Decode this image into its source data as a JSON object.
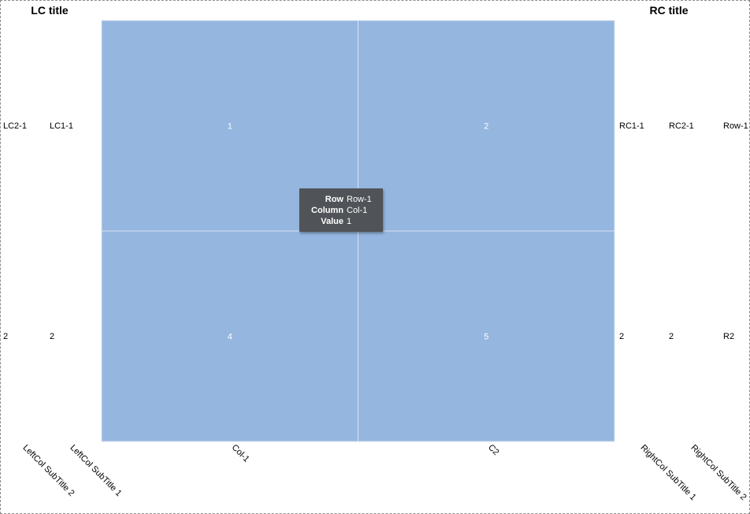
{
  "chart_data": {
    "type": "heatmap",
    "title": "",
    "columns": [
      "Col-1",
      "C2"
    ],
    "rows": [
      "Row-1",
      "R2"
    ],
    "values": [
      [
        1,
        2
      ],
      [
        4,
        5
      ]
    ],
    "color": "#95b6df",
    "left_columns": {
      "title": "LC title",
      "subtitles": [
        "LeftCol SubTitle 2",
        "LeftCol SubTitle 1"
      ],
      "columns": [
        [
          "LC2-1",
          "2"
        ],
        [
          "LC1-1",
          "2"
        ]
      ]
    },
    "right_columns": {
      "title": "RC title",
      "subtitles": [
        "RightCol SubTitle 1",
        "RightCol SubTitle 2"
      ],
      "columns": [
        [
          "RC1-1",
          "2"
        ],
        [
          "RC2-1",
          "2"
        ],
        [
          "Row-1",
          "R2"
        ]
      ]
    }
  },
  "tooltip": {
    "row_label": "Row",
    "row_value": "Row-1",
    "column_label": "Column",
    "column_value": "Col-1",
    "value_label": "Value",
    "value_value": "1"
  }
}
